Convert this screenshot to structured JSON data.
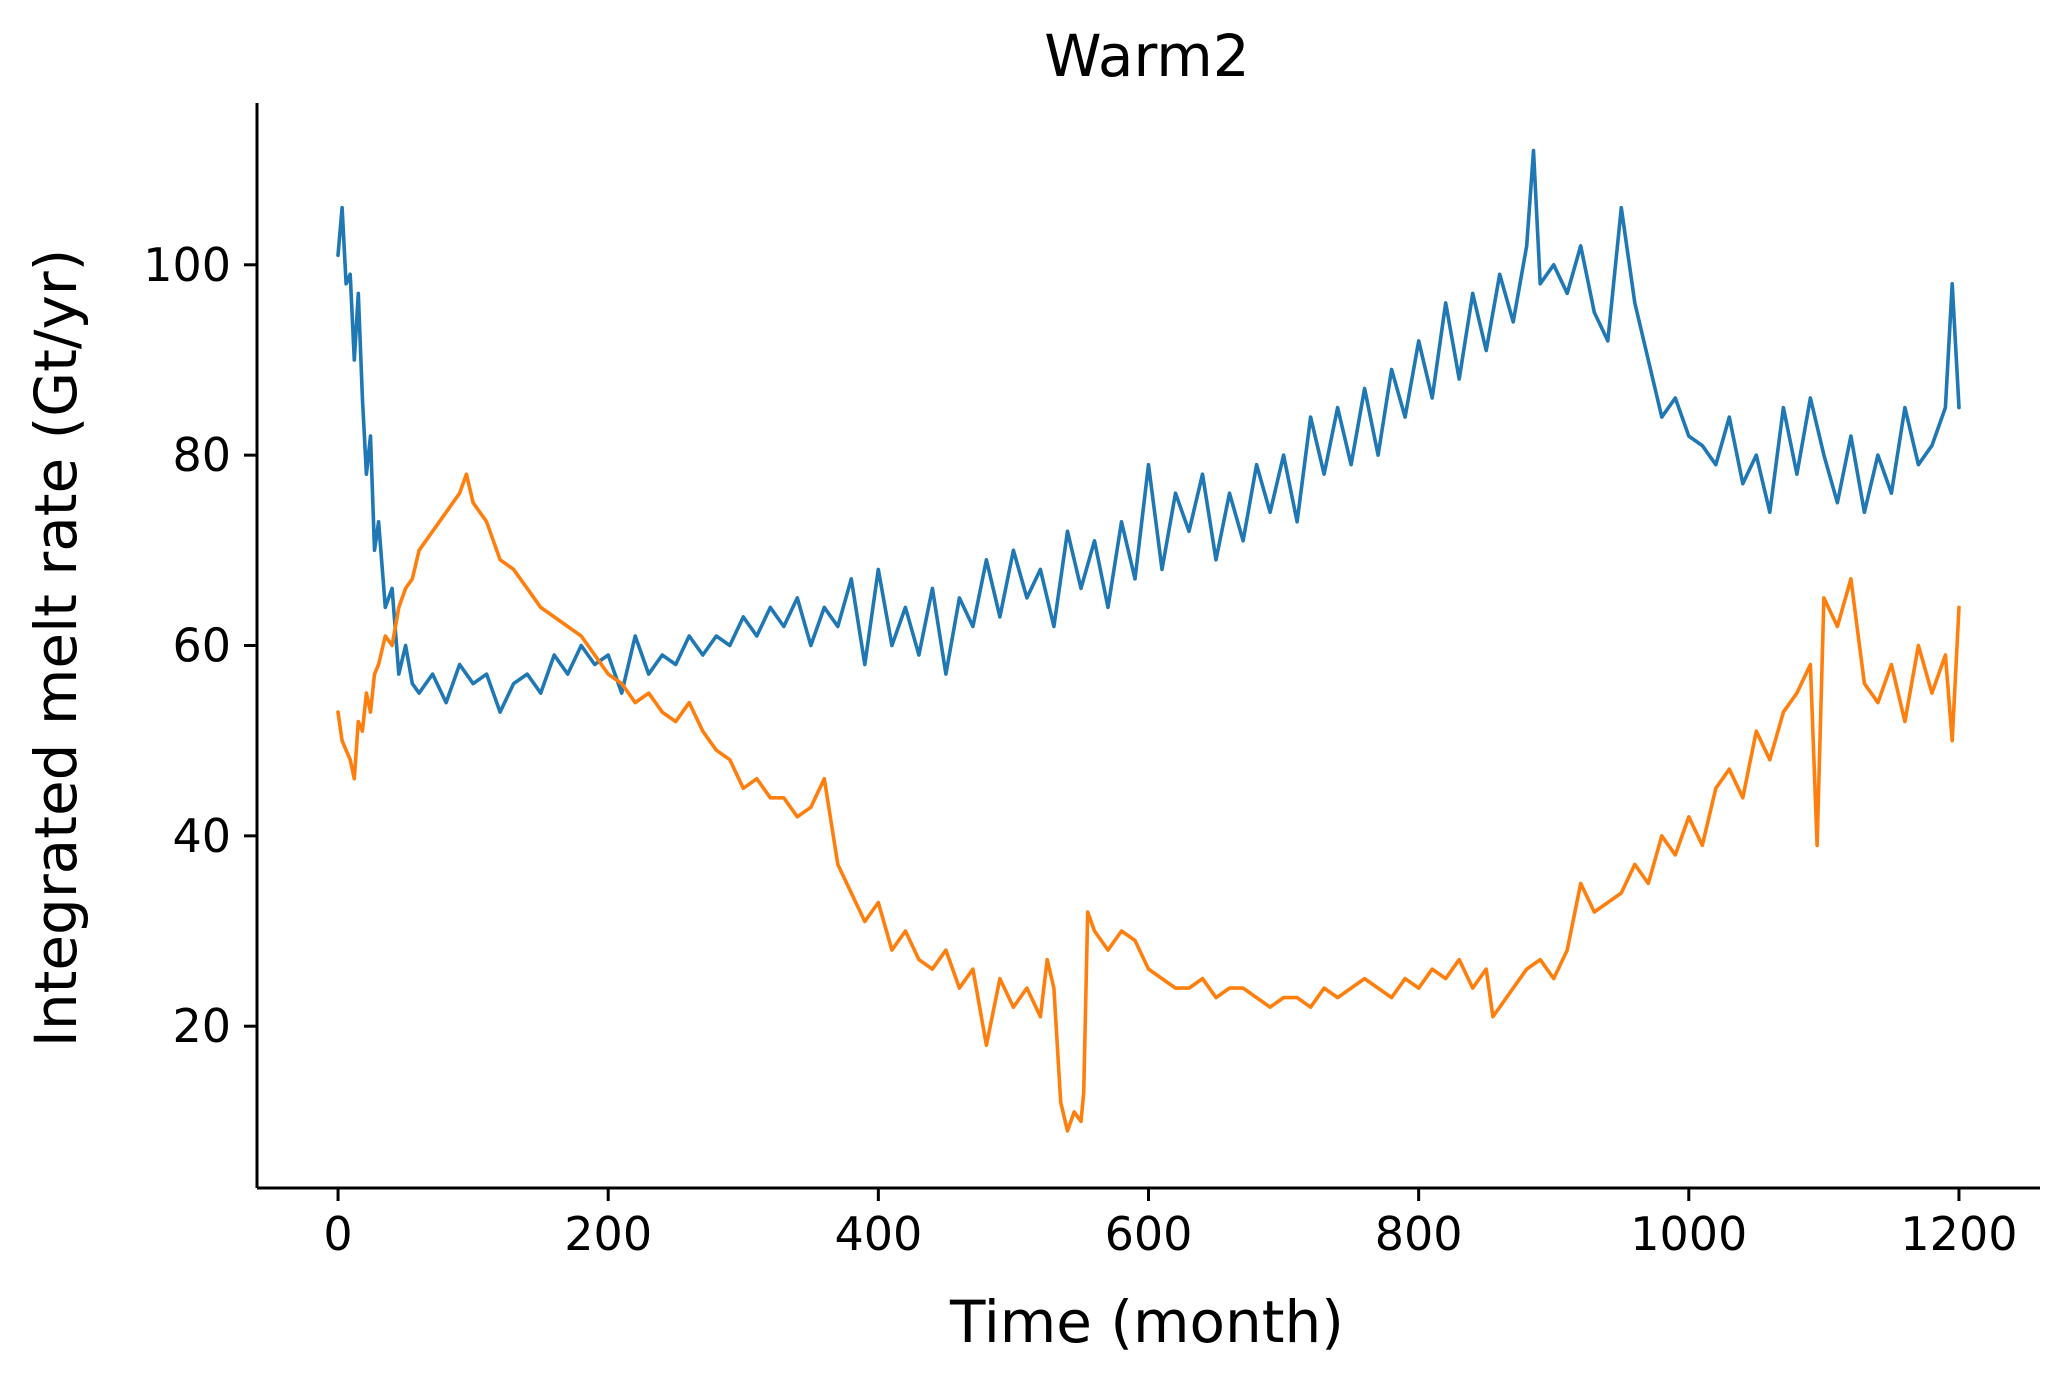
{
  "chart_data": {
    "type": "line",
    "title": "Warm2",
    "xlabel": "Time (month)",
    "ylabel": "Integrated melt rate (Gt/yr)",
    "xlim": [
      -60,
      1260
    ],
    "ylim": [
      3,
      117
    ],
    "xticks": [
      0,
      200,
      400,
      600,
      800,
      1000,
      1200
    ],
    "yticks": [
      20,
      40,
      60,
      80,
      100
    ],
    "xtick_labels": [
      "0",
      "200",
      "400",
      "600",
      "800",
      "1000",
      "1200"
    ],
    "ytick_labels": [
      "20",
      "40",
      "60",
      "80",
      "100"
    ],
    "grid": false,
    "legend": "none",
    "series": [
      {
        "color": "#1f77b4",
        "x": [
          0,
          3,
          6,
          9,
          12,
          15,
          18,
          21,
          24,
          27,
          30,
          35,
          40,
          45,
          50,
          55,
          60,
          70,
          80,
          90,
          100,
          110,
          120,
          130,
          140,
          150,
          160,
          170,
          180,
          190,
          200,
          210,
          220,
          230,
          240,
          250,
          260,
          270,
          280,
          290,
          300,
          310,
          320,
          330,
          340,
          350,
          360,
          370,
          380,
          390,
          400,
          410,
          420,
          430,
          440,
          450,
          460,
          470,
          480,
          490,
          500,
          510,
          520,
          530,
          540,
          550,
          560,
          570,
          580,
          590,
          600,
          610,
          620,
          630,
          640,
          650,
          660,
          670,
          680,
          690,
          700,
          710,
          720,
          730,
          740,
          750,
          760,
          770,
          780,
          790,
          800,
          810,
          820,
          830,
          840,
          850,
          860,
          870,
          880,
          885,
          890,
          900,
          910,
          920,
          930,
          940,
          950,
          960,
          970,
          980,
          990,
          1000,
          1010,
          1020,
          1030,
          1040,
          1050,
          1060,
          1070,
          1080,
          1090,
          1100,
          1110,
          1120,
          1130,
          1140,
          1150,
          1160,
          1170,
          1180,
          1190,
          1195,
          1200
        ],
        "values": [
          101,
          106,
          98,
          99,
          90,
          97,
          86,
          78,
          82,
          70,
          73,
          64,
          66,
          57,
          60,
          56,
          55,
          57,
          54,
          58,
          56,
          57,
          53,
          56,
          57,
          55,
          59,
          57,
          60,
          58,
          59,
          55,
          61,
          57,
          59,
          58,
          61,
          59,
          61,
          60,
          63,
          61,
          64,
          62,
          65,
          60,
          64,
          62,
          67,
          58,
          68,
          60,
          64,
          59,
          66,
          57,
          65,
          62,
          69,
          63,
          70,
          65,
          68,
          62,
          72,
          66,
          71,
          64,
          73,
          67,
          79,
          68,
          76,
          72,
          78,
          69,
          76,
          71,
          79,
          74,
          80,
          73,
          84,
          78,
          85,
          79,
          87,
          80,
          89,
          84,
          92,
          86,
          96,
          88,
          97,
          91,
          99,
          94,
          102,
          112,
          98,
          100,
          97,
          102,
          95,
          92,
          106,
          96,
          90,
          84,
          86,
          82,
          81,
          79,
          84,
          77,
          80,
          74,
          85,
          78,
          86,
          80,
          75,
          82,
          74,
          80,
          76,
          85,
          79,
          81,
          85,
          98,
          85
        ]
      },
      {
        "color": "#ff7f0e",
        "x": [
          0,
          3,
          6,
          9,
          12,
          15,
          18,
          21,
          24,
          27,
          30,
          35,
          40,
          45,
          50,
          55,
          60,
          70,
          80,
          90,
          95,
          100,
          110,
          120,
          130,
          140,
          150,
          160,
          170,
          180,
          190,
          200,
          210,
          220,
          230,
          240,
          250,
          260,
          270,
          280,
          290,
          300,
          310,
          320,
          330,
          340,
          350,
          360,
          370,
          380,
          390,
          400,
          410,
          420,
          430,
          440,
          450,
          460,
          470,
          480,
          490,
          500,
          510,
          520,
          525,
          530,
          535,
          540,
          545,
          550,
          552,
          555,
          560,
          570,
          580,
          590,
          600,
          610,
          620,
          630,
          640,
          650,
          660,
          670,
          680,
          690,
          700,
          710,
          720,
          730,
          740,
          750,
          760,
          770,
          780,
          790,
          800,
          810,
          820,
          830,
          840,
          850,
          855,
          860,
          870,
          880,
          890,
          900,
          910,
          920,
          930,
          940,
          950,
          960,
          970,
          980,
          990,
          1000,
          1010,
          1020,
          1030,
          1040,
          1050,
          1060,
          1070,
          1080,
          1090,
          1095,
          1100,
          1110,
          1120,
          1130,
          1140,
          1150,
          1160,
          1170,
          1180,
          1190,
          1195,
          1200
        ],
        "values": [
          53,
          50,
          49,
          48,
          46,
          52,
          51,
          55,
          53,
          57,
          58,
          61,
          60,
          64,
          66,
          67,
          70,
          72,
          74,
          76,
          78,
          75,
          73,
          69,
          68,
          66,
          64,
          63,
          62,
          61,
          59,
          57,
          56,
          54,
          55,
          53,
          52,
          54,
          51,
          49,
          48,
          45,
          46,
          44,
          44,
          42,
          43,
          46,
          37,
          34,
          31,
          33,
          28,
          30,
          27,
          26,
          28,
          24,
          26,
          18,
          25,
          22,
          24,
          21,
          27,
          24,
          12,
          9,
          11,
          10,
          13,
          32,
          30,
          28,
          30,
          29,
          26,
          25,
          24,
          24,
          25,
          23,
          24,
          24,
          23,
          22,
          23,
          23,
          22,
          24,
          23,
          24,
          25,
          24,
          23,
          25,
          24,
          26,
          25,
          27,
          24,
          26,
          21,
          22,
          24,
          26,
          27,
          25,
          28,
          35,
          32,
          33,
          34,
          37,
          35,
          40,
          38,
          42,
          39,
          45,
          47,
          44,
          51,
          48,
          53,
          55,
          58,
          39,
          65,
          62,
          67,
          56,
          54,
          58,
          52,
          60,
          55,
          59,
          50,
          64
        ]
      }
    ]
  }
}
